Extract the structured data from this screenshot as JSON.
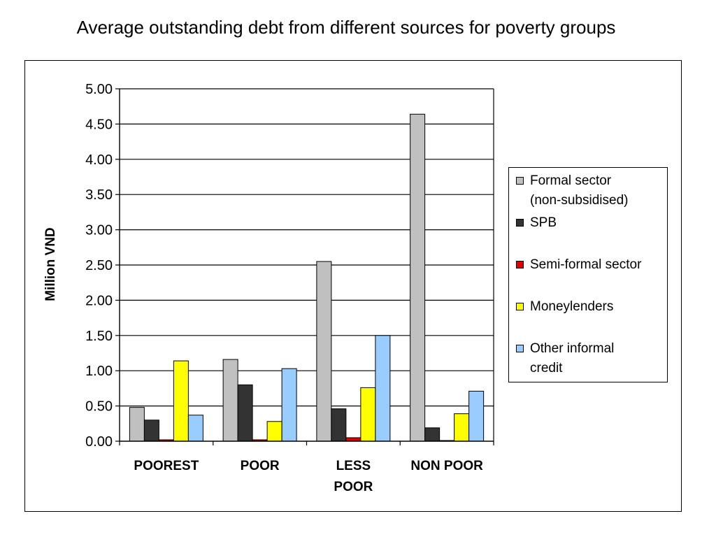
{
  "chart_data": {
    "type": "bar",
    "title": "Average outstanding debt from different sources for poverty groups",
    "ylabel": "Million VND",
    "xlabel": "",
    "ylim": [
      0,
      5
    ],
    "yticks": [
      "0.00",
      "0.50",
      "1.00",
      "1.50",
      "2.00",
      "2.50",
      "3.00",
      "3.50",
      "4.00",
      "4.50",
      "5.00"
    ],
    "grid": true,
    "legend_position": "right",
    "categories": [
      {
        "lines": [
          "POOREST"
        ]
      },
      {
        "lines": [
          "POOR"
        ]
      },
      {
        "lines": [
          "LESS",
          "POOR"
        ]
      },
      {
        "lines": [
          "NON POOR"
        ]
      }
    ],
    "series": [
      {
        "name": "Formal sector (non-subsidised)",
        "legend_lines": [
          "Formal sector",
          "(non-subsidised)"
        ],
        "color": "#C0C0C0",
        "values": [
          0.48,
          1.16,
          2.55,
          4.64
        ]
      },
      {
        "name": "SPB",
        "legend_lines": [
          "SPB"
        ],
        "color": "#333333",
        "values": [
          0.3,
          0.8,
          0.46,
          0.19
        ]
      },
      {
        "name": "Semi-formal sector",
        "legend_lines": [
          "Semi-formal sector"
        ],
        "color": "#E00000",
        "values": [
          0.02,
          0.02,
          0.05,
          0.01
        ]
      },
      {
        "name": "Moneylenders",
        "legend_lines": [
          "Moneylenders"
        ],
        "color": "#FFFF00",
        "values": [
          1.14,
          0.28,
          0.76,
          0.39
        ]
      },
      {
        "name": "Other informal credit",
        "legend_lines": [
          "Other informal",
          "credit"
        ],
        "color": "#99CCFF",
        "values": [
          0.37,
          1.03,
          1.5,
          0.71
        ]
      }
    ]
  }
}
